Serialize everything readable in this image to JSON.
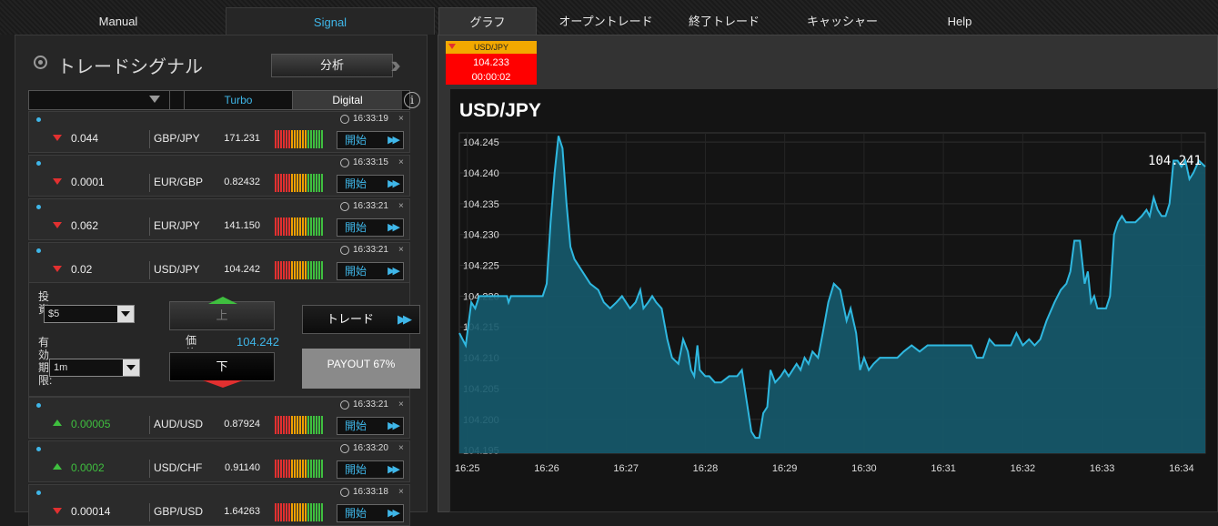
{
  "nav": {
    "manual": "Manual",
    "signal": "Signal",
    "graph": "グラフ",
    "open_trades": "オープントレード",
    "closed_trades": "終了トレード",
    "cashier": "キャッシャー",
    "help": "Help"
  },
  "signals": {
    "title": "トレードシグナル",
    "analyze_label": "分析",
    "filter": {
      "turbo": "Turbo",
      "digital": "Digital",
      "info": "i"
    },
    "rows_top": [
      {
        "time": "16:33:19",
        "direction": "down",
        "change": "0.044",
        "pair": "GBP/JPY",
        "price": "171.231",
        "start": "開始"
      },
      {
        "time": "16:33:15",
        "direction": "down",
        "change": "0.0001",
        "pair": "EUR/GBP",
        "price": "0.82432",
        "start": "開始"
      },
      {
        "time": "16:33:21",
        "direction": "down",
        "change": "0.062",
        "pair": "EUR/JPY",
        "price": "141.150",
        "start": "開始"
      },
      {
        "time": "16:33:21",
        "direction": "down",
        "change": "0.02",
        "pair": "USD/JPY",
        "price": "104.242",
        "start": "開始"
      }
    ],
    "rows_bottom": [
      {
        "time": "16:33:21",
        "direction": "up",
        "change": "0.00005",
        "pair": "AUD/USD",
        "price": "0.87924",
        "start": "開始"
      },
      {
        "time": "16:33:20",
        "direction": "up",
        "change": "0.0002",
        "pair": "USD/CHF",
        "price": "0.91140",
        "start": "開始"
      },
      {
        "time": "16:33:18",
        "direction": "down",
        "change": "0.00014",
        "pair": "GBP/USD",
        "price": "1.64263",
        "start": "開始"
      }
    ],
    "close_icon": "×",
    "expanded": {
      "invest_label": "投資:",
      "invest_value": "$5",
      "expiry_label": "有効期限:",
      "expiry_value": "1m",
      "up_label": "上",
      "down_label": "下",
      "price_label": "価格:",
      "price_value": "104.242",
      "trade_label": "トレード",
      "payout": "PAYOUT 67%"
    }
  },
  "ticker": {
    "pair": "USD/JPY",
    "price": "104.233",
    "countdown": "00:00:02"
  },
  "colors": {
    "accent": "#3fb6e8",
    "up": "#3fbf3f",
    "down": "#e23030",
    "chart_line": "#2fb8e0",
    "chart_fill": "#155a6d"
  },
  "chart_data": {
    "type": "area",
    "title": "USD/JPY",
    "current_value_label": "104.241",
    "x_ticks": [
      "16:25",
      "16:26",
      "16:27",
      "16:28",
      "16:29",
      "16:30",
      "16:31",
      "16:32",
      "16:33",
      "16:34"
    ],
    "y_ticks": [
      "104.195",
      "104.200",
      "104.205",
      "104.210",
      "104.215",
      "104.220",
      "104.225",
      "104.230",
      "104.235",
      "104.240",
      "104.245"
    ],
    "ylim": [
      104.1945,
      104.2465
    ],
    "xlim_minutes": [
      24.9,
      34.3
    ],
    "grid": true,
    "points": [
      [
        24.9,
        104.214
      ],
      [
        24.98,
        104.212
      ],
      [
        25.05,
        104.219
      ],
      [
        25.1,
        104.218
      ],
      [
        25.15,
        104.22
      ],
      [
        25.5,
        104.22
      ],
      [
        25.52,
        104.219
      ],
      [
        25.55,
        104.22
      ],
      [
        25.95,
        104.22
      ],
      [
        26.0,
        104.222
      ],
      [
        26.05,
        104.232
      ],
      [
        26.1,
        104.24
      ],
      [
        26.15,
        104.246
      ],
      [
        26.2,
        104.244
      ],
      [
        26.25,
        104.235
      ],
      [
        26.3,
        104.228
      ],
      [
        26.35,
        104.226
      ],
      [
        26.45,
        104.224
      ],
      [
        26.55,
        104.222
      ],
      [
        26.65,
        104.221
      ],
      [
        26.72,
        104.219
      ],
      [
        26.8,
        104.218
      ],
      [
        26.88,
        104.219
      ],
      [
        26.95,
        104.22
      ],
      [
        27.0,
        104.219
      ],
      [
        27.05,
        104.218
      ],
      [
        27.12,
        104.219
      ],
      [
        27.18,
        104.221
      ],
      [
        27.22,
        104.218
      ],
      [
        27.28,
        104.219
      ],
      [
        27.33,
        104.22
      ],
      [
        27.38,
        104.219
      ],
      [
        27.45,
        104.218
      ],
      [
        27.52,
        104.213
      ],
      [
        27.58,
        104.21
      ],
      [
        27.66,
        104.209
      ],
      [
        27.72,
        104.213
      ],
      [
        27.78,
        104.211
      ],
      [
        27.82,
        104.208
      ],
      [
        27.86,
        104.207
      ],
      [
        27.9,
        104.212
      ],
      [
        27.93,
        104.208
      ],
      [
        28.0,
        104.207
      ],
      [
        28.05,
        104.207
      ],
      [
        28.12,
        104.206
      ],
      [
        28.2,
        104.206
      ],
      [
        28.3,
        104.207
      ],
      [
        28.4,
        104.207
      ],
      [
        28.46,
        104.208
      ],
      [
        28.52,
        104.203
      ],
      [
        28.58,
        104.198
      ],
      [
        28.63,
        104.197
      ],
      [
        28.68,
        104.197
      ],
      [
        28.73,
        104.201
      ],
      [
        28.78,
        104.202
      ],
      [
        28.82,
        104.208
      ],
      [
        28.88,
        104.206
      ],
      [
        28.95,
        104.207
      ],
      [
        29.0,
        104.208
      ],
      [
        29.05,
        104.207
      ],
      [
        29.1,
        104.208
      ],
      [
        29.15,
        104.209
      ],
      [
        29.2,
        104.208
      ],
      [
        29.25,
        104.21
      ],
      [
        29.3,
        104.209
      ],
      [
        29.35,
        104.211
      ],
      [
        29.42,
        104.21
      ],
      [
        29.48,
        104.214
      ],
      [
        29.55,
        104.219
      ],
      [
        29.62,
        104.222
      ],
      [
        29.7,
        104.221
      ],
      [
        29.78,
        104.216
      ],
      [
        29.83,
        104.218
      ],
      [
        29.9,
        104.214
      ],
      [
        29.95,
        104.208
      ],
      [
        30.0,
        104.21
      ],
      [
        30.06,
        104.208
      ],
      [
        30.12,
        104.209
      ],
      [
        30.2,
        104.21
      ],
      [
        30.3,
        104.21
      ],
      [
        30.42,
        104.21
      ],
      [
        30.5,
        104.211
      ],
      [
        30.6,
        104.212
      ],
      [
        30.7,
        104.211
      ],
      [
        30.8,
        104.212
      ],
      [
        31.0,
        104.212
      ],
      [
        31.2,
        104.212
      ],
      [
        31.35,
        104.212
      ],
      [
        31.42,
        104.21
      ],
      [
        31.5,
        104.21
      ],
      [
        31.58,
        104.213
      ],
      [
        31.65,
        104.212
      ],
      [
        31.75,
        104.212
      ],
      [
        31.85,
        104.212
      ],
      [
        31.92,
        104.214
      ],
      [
        32.0,
        104.212
      ],
      [
        32.08,
        104.213
      ],
      [
        32.15,
        104.212
      ],
      [
        32.22,
        104.213
      ],
      [
        32.3,
        104.216
      ],
      [
        32.4,
        104.219
      ],
      [
        32.48,
        104.221
      ],
      [
        32.55,
        104.222
      ],
      [
        32.6,
        104.224
      ],
      [
        32.65,
        104.229
      ],
      [
        32.72,
        104.229
      ],
      [
        32.78,
        104.222
      ],
      [
        32.82,
        104.224
      ],
      [
        32.86,
        104.219
      ],
      [
        32.9,
        104.22
      ],
      [
        32.94,
        104.218
      ],
      [
        32.98,
        104.218
      ],
      [
        33.05,
        104.218
      ],
      [
        33.1,
        104.22
      ],
      [
        33.15,
        104.23
      ],
      [
        33.2,
        104.232
      ],
      [
        33.25,
        104.233
      ],
      [
        33.3,
        104.232
      ],
      [
        33.35,
        104.232
      ],
      [
        33.42,
        104.232
      ],
      [
        33.5,
        104.233
      ],
      [
        33.56,
        104.234
      ],
      [
        33.6,
        104.233
      ],
      [
        33.65,
        104.236
      ],
      [
        33.7,
        104.234
      ],
      [
        33.75,
        104.233
      ],
      [
        33.8,
        104.233
      ],
      [
        33.85,
        104.235
      ],
      [
        33.9,
        104.242
      ],
      [
        33.95,
        104.242
      ],
      [
        34.0,
        104.241
      ],
      [
        34.05,
        104.242
      ],
      [
        34.1,
        104.239
      ],
      [
        34.15,
        104.24
      ],
      [
        34.22,
        104.242
      ],
      [
        34.3,
        104.241
      ]
    ]
  }
}
